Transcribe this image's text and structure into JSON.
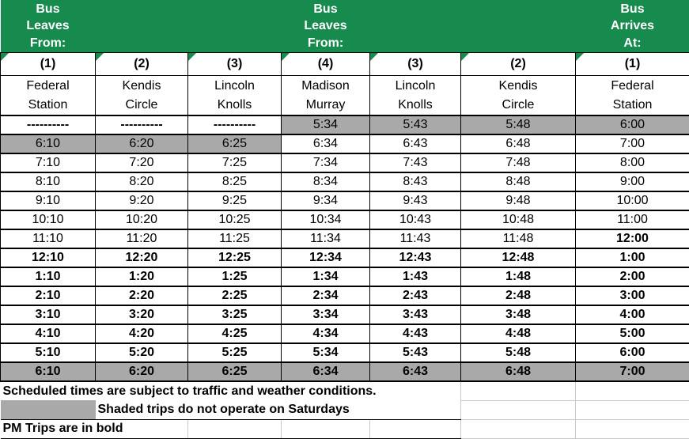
{
  "colors": {
    "header_green": "#178a4d",
    "shaded_gray": "#a9a9a9",
    "gridline_gray": "#c9c9c9"
  },
  "header": {
    "groups": [
      "Bus\nLeaves\nFrom:",
      "Bus\nLeaves\nFrom:",
      "Bus\nArrives\nAt:"
    ]
  },
  "columns": [
    {
      "group": "Bus\nLeaves\nFrom:",
      "number": "(1)",
      "station": "Federal\nStation"
    },
    {
      "group": "",
      "number": "(2)",
      "station": "Kendis\nCircle"
    },
    {
      "group": "",
      "number": "(3)",
      "station": "Lincoln\nKnolls"
    },
    {
      "group": "Bus\nLeaves\nFrom:",
      "number": "(4)",
      "station": "Madison\nMurray"
    },
    {
      "group": "",
      "number": "(3)",
      "station": "Lincoln\nKnolls"
    },
    {
      "group": "",
      "number": "(2)",
      "station": "Kendis\nCircle"
    },
    {
      "group": "Bus\nArrives\nAt:",
      "number": "(1)",
      "station": "Federal\nStation"
    }
  ],
  "rows": [
    {
      "times": [
        "----------",
        "----------",
        "----------",
        "5:34",
        "5:43",
        "5:48",
        "6:00"
      ],
      "shaded": "right4",
      "bold": "left3"
    },
    {
      "times": [
        "6:10",
        "6:20",
        "6:25",
        "6:34",
        "6:43",
        "6:48",
        "7:00"
      ],
      "shaded": "left3",
      "bold": "none"
    },
    {
      "times": [
        "7:10",
        "7:20",
        "7:25",
        "7:34",
        "7:43",
        "7:48",
        "8:00"
      ],
      "shaded": "none",
      "bold": "none"
    },
    {
      "times": [
        "8:10",
        "8:20",
        "8:25",
        "8:34",
        "8:43",
        "8:48",
        "9:00"
      ],
      "shaded": "none",
      "bold": "none"
    },
    {
      "times": [
        "9:10",
        "9:20",
        "9:25",
        "9:34",
        "9:43",
        "9:48",
        "10:00"
      ],
      "shaded": "none",
      "bold": "none"
    },
    {
      "times": [
        "10:10",
        "10:20",
        "10:25",
        "10:34",
        "10:43",
        "10:48",
        "11:00"
      ],
      "shaded": "none",
      "bold": "none"
    },
    {
      "times": [
        "11:10",
        "11:20",
        "11:25",
        "11:34",
        "11:43",
        "11:48",
        "12:00"
      ],
      "shaded": "none",
      "bold": "last"
    },
    {
      "times": [
        "12:10",
        "12:20",
        "12:25",
        "12:34",
        "12:43",
        "12:48",
        "1:00"
      ],
      "shaded": "none",
      "bold": "all"
    },
    {
      "times": [
        "1:10",
        "1:20",
        "1:25",
        "1:34",
        "1:43",
        "1:48",
        "2:00"
      ],
      "shaded": "none",
      "bold": "all"
    },
    {
      "times": [
        "2:10",
        "2:20",
        "2:25",
        "2:34",
        "2:43",
        "2:48",
        "3:00"
      ],
      "shaded": "none",
      "bold": "all"
    },
    {
      "times": [
        "3:10",
        "3:20",
        "3:25",
        "3:34",
        "3:43",
        "3:48",
        "4:00"
      ],
      "shaded": "none",
      "bold": "all"
    },
    {
      "times": [
        "4:10",
        "4:20",
        "4:25",
        "4:34",
        "4:43",
        "4:48",
        "5:00"
      ],
      "shaded": "none",
      "bold": "all"
    },
    {
      "times": [
        "5:10",
        "5:20",
        "5:25",
        "5:34",
        "5:43",
        "5:48",
        "6:00"
      ],
      "shaded": "none",
      "bold": "all"
    },
    {
      "times": [
        "6:10",
        "6:20",
        "6:25",
        "6:34",
        "6:43",
        "6:48",
        "7:00"
      ],
      "shaded": "all",
      "bold": "all"
    }
  ],
  "footnotes": {
    "conditions": "Scheduled times are subject to traffic and weather conditions.",
    "shaded": "Shaded trips do not operate on Saturdays",
    "pm": "PM Trips are in bold"
  }
}
